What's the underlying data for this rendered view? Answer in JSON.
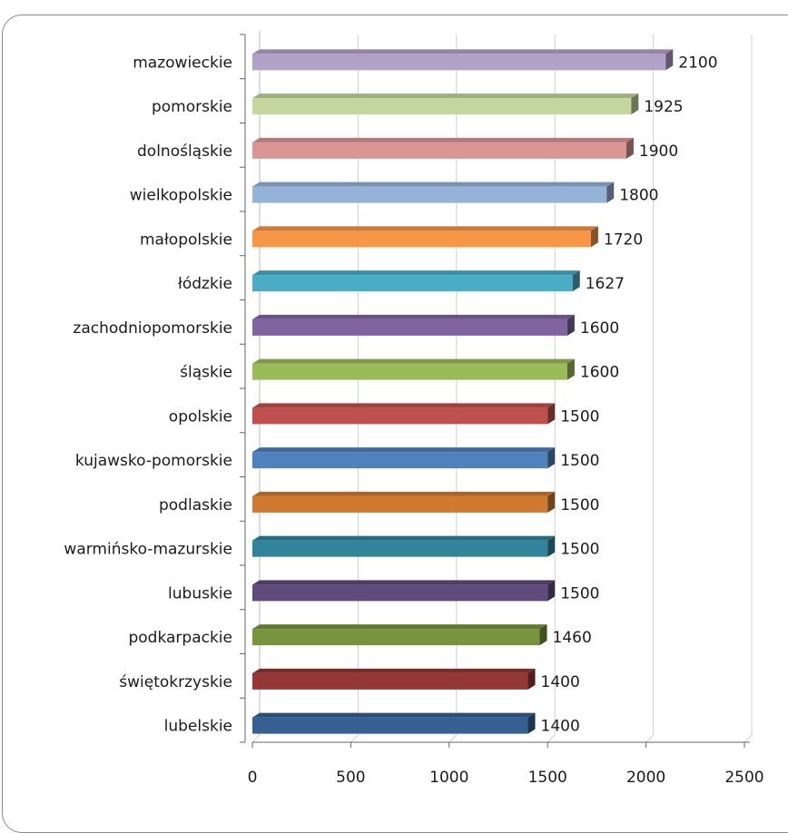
{
  "header": {
    "caption": ""
  },
  "chart_data": {
    "type": "bar",
    "orientation": "horizontal",
    "categories": [
      "mazowieckie",
      "pomorskie",
      "dolnośląskie",
      "wielkopolskie",
      "małopolskie",
      "łódzkie",
      "zachodniopomorskie",
      "śląskie",
      "opolskie",
      "kujawsko-pomorskie",
      "podlaskie",
      "warmińsko-mazurskie",
      "lubuskie",
      "podkarpackie",
      "świętokrzyskie",
      "lubelskie"
    ],
    "values": [
      2100,
      1925,
      1900,
      1800,
      1720,
      1627,
      1600,
      1600,
      1500,
      1500,
      1500,
      1500,
      1500,
      1460,
      1400,
      1400
    ],
    "value_labels": [
      "2100",
      "1925",
      "1900",
      "1800",
      "1720",
      "1627",
      "1600",
      "1600",
      "1500",
      "1500",
      "1500",
      "1500",
      "1500",
      "1460",
      "1400",
      "1400"
    ],
    "colors": [
      "#b3a2c7",
      "#c3d69b",
      "#d99694",
      "#95b3d7",
      "#f79646",
      "#4bacc6",
      "#8064a2",
      "#9bbb59",
      "#c0504d",
      "#4f81bd",
      "#d07a30",
      "#31849b",
      "#604a7b",
      "#77933c",
      "#953735",
      "#366092"
    ],
    "xticks": [
      "0",
      "500",
      "1000",
      "1500",
      "2000",
      "2500"
    ],
    "xlim": [
      0,
      2500
    ],
    "title": "",
    "xlabel": "",
    "ylabel": "",
    "grid": true,
    "legend": "none"
  }
}
